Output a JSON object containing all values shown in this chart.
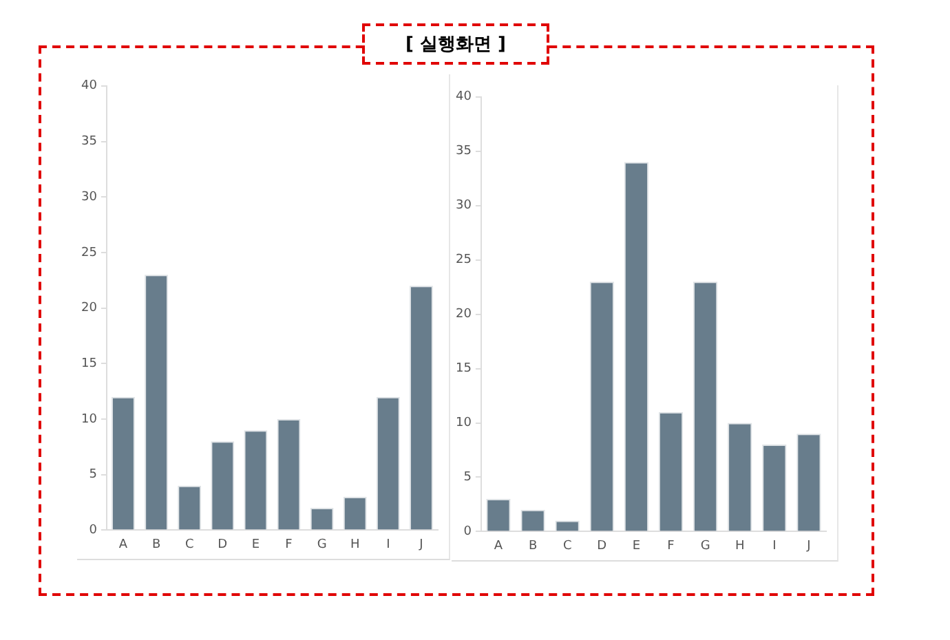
{
  "chart_data": [
    {
      "type": "bar",
      "title": "[ 실행화면 ]",
      "categories": [
        "A",
        "B",
        "C",
        "D",
        "E",
        "F",
        "G",
        "H",
        "I",
        "J"
      ],
      "values": [
        12,
        23,
        4,
        8,
        9,
        10,
        2,
        3,
        12,
        22
      ],
      "color": "#687d8c",
      "ylim": [
        0,
        40
      ],
      "yticks": [
        0,
        5,
        10,
        15,
        20,
        25,
        30,
        35,
        40
      ],
      "grid": false
    },
    {
      "type": "bar",
      "categories": [
        "A",
        "B",
        "C",
        "D",
        "E",
        "F",
        "G",
        "H",
        "I",
        "J"
      ],
      "values": [
        3,
        2,
        1,
        23,
        34,
        11,
        23,
        10,
        8,
        9
      ],
      "color": "#687d8c",
      "ylim": [
        0,
        40
      ],
      "yticks": [
        0,
        5,
        10,
        15,
        20,
        25,
        30,
        35,
        40
      ],
      "grid": false
    }
  ]
}
